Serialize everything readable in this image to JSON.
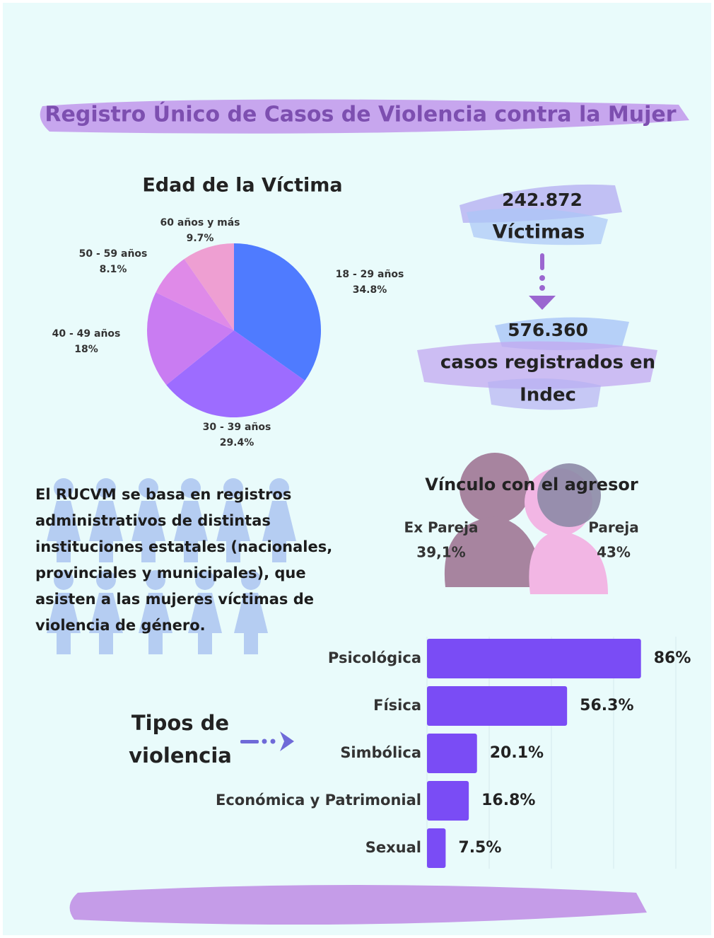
{
  "title": "Registro Único de Casos de Violencia contra la Mujer",
  "stats": {
    "victims_value": "242.872",
    "victims_label": "Víctimas",
    "cases_value": "576.360",
    "cases_label": [
      "casos registrados en",
      "Indec"
    ]
  },
  "vinculo": {
    "title": "Vínculo con el agresor",
    "items": [
      {
        "label": "Ex Pareja",
        "value": "39,1%"
      },
      {
        "label": "Pareja",
        "value": "43%"
      }
    ]
  },
  "description": [
    "El RUCVM se basa en registros",
    "administrativos de distintas",
    "instituciones estatales (nacionales,",
    "provinciales y municipales), que",
    "asisten a las mujeres víctimas de",
    "violencia de género."
  ],
  "chart_data": [
    {
      "type": "pie",
      "title": "Edad de la Víctima",
      "categories": [
        "18 - 29 años",
        "30 - 39 años",
        "40 - 49 años",
        "50 - 59 años",
        "60 años y más"
      ],
      "values": [
        34.8,
        29.4,
        18,
        8.1,
        9.7
      ],
      "value_labels": [
        "34.8%",
        "29.4%",
        "18%",
        "8.1%",
        "9.7%"
      ],
      "colors": [
        "#4f7bff",
        "#9d6cff",
        "#c97cf2",
        "#df8ae8",
        "#ee9fd2"
      ]
    },
    {
      "type": "bar",
      "orientation": "horizontal",
      "title": [
        "Tipos de",
        "violencia"
      ],
      "categories": [
        "Psicológica",
        "Física",
        "Simbólica",
        "Económica y Patrimonial",
        "Sexual"
      ],
      "values": [
        86,
        56.3,
        20.1,
        16.8,
        7.5
      ],
      "value_labels": [
        "86%",
        "56.3%",
        "20.1%",
        "16.8%",
        "7.5%"
      ],
      "color": "#7a4cf5",
      "xlim": [
        0,
        100
      ],
      "xticks": [
        0,
        25,
        50,
        75,
        100
      ],
      "grid": true
    }
  ]
}
